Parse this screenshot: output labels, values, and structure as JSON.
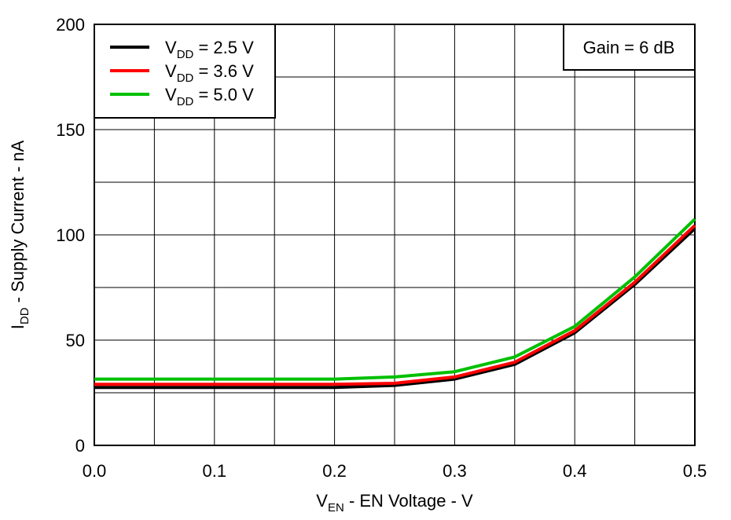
{
  "chart_data": {
    "type": "line",
    "ylabel": [
      "I",
      "DD",
      " - Supply Current - nA"
    ],
    "xlabel": [
      "V",
      "EN",
      " - EN Voltage - V"
    ],
    "annotation": "Gain = 6 dB",
    "x": [
      0,
      0.05,
      0.1,
      0.15,
      0.2,
      0.25,
      0.3,
      0.35,
      0.4,
      0.45,
      0.5
    ],
    "series": [
      {
        "name": [
          "V",
          "DD",
          " = 2.5 V"
        ],
        "color": "#000000",
        "values": [
          27.5,
          27.5,
          27.5,
          27.5,
          27.5,
          28.5,
          31.5,
          38.5,
          53.5,
          76.5,
          103
        ]
      },
      {
        "name": [
          "V",
          "DD",
          " = 3.6 V"
        ],
        "color": "#ff0000",
        "values": [
          29,
          29,
          29,
          29,
          29,
          29.5,
          32.5,
          39.5,
          54.5,
          77.5,
          104.5
        ]
      },
      {
        "name": [
          "V",
          "DD",
          " = 5.0 V"
        ],
        "color": "#00c000",
        "values": [
          31.5,
          31.5,
          31.5,
          31.5,
          31.5,
          32.5,
          35,
          42,
          56.5,
          80,
          107.5
        ]
      }
    ],
    "xlim": [
      0,
      0.5
    ],
    "ylim": [
      0,
      200
    ],
    "xticks": [
      {
        "value": 0,
        "label": "0.0"
      },
      0.1,
      0.2,
      0.3,
      0.4,
      0.5
    ],
    "yticks": [
      0,
      50,
      100,
      150,
      200
    ],
    "xminor": [
      0.05,
      0.15,
      0.25,
      0.35,
      0.45
    ],
    "yminor": [
      25,
      75,
      125,
      175
    ],
    "grid": true,
    "legend": "upper-left"
  }
}
